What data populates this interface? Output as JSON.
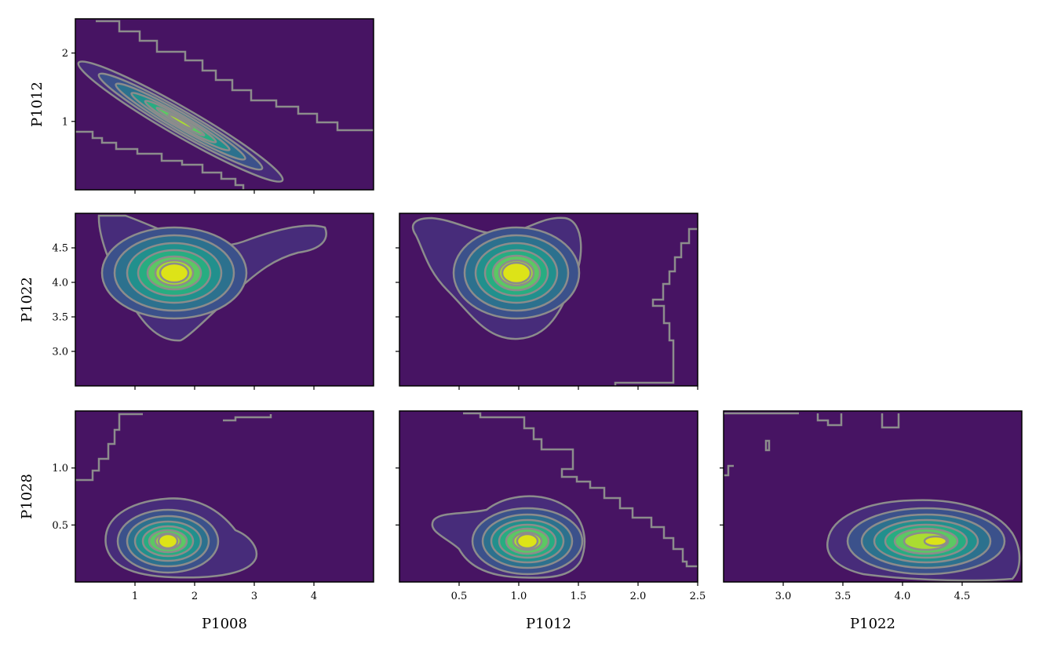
{
  "chart_data": {
    "type": "contour",
    "layout": "corner",
    "colormap": [
      "#440154",
      "#46337e",
      "#365c8d",
      "#277f8e",
      "#1fa187",
      "#4ac16d",
      "#9fda3a",
      "#d0e11c",
      "#fde725"
    ],
    "contour_line_color": "#8c8c8c",
    "background_fill": "#471463",
    "variables": [
      "P1008",
      "P1012",
      "P1022",
      "P1028"
    ],
    "panels": [
      {
        "id": "p1012-vs-p1008",
        "xvar": "P1008",
        "yvar": "P1012",
        "xlim": [
          0.0,
          5.0
        ],
        "ylim": [
          0.0,
          2.5
        ],
        "xticks": [],
        "yticks": [
          1,
          2
        ],
        "ytick_labels": [
          "1",
          "2"
        ],
        "ylabel": "P1012",
        "xlabel": "",
        "peak": {
          "x": 1.9,
          "y": 1.05
        },
        "ridge_slope": -0.35,
        "density_levels": [
          0.05,
          0.15,
          0.3,
          0.45,
          0.6,
          0.75,
          0.9
        ]
      },
      {
        "id": "p1022-vs-p1008",
        "xvar": "P1008",
        "yvar": "P1022",
        "xlim": [
          0.0,
          5.0
        ],
        "ylim": [
          2.5,
          5.0
        ],
        "yticks": [
          3.0,
          3.5,
          4.0,
          4.5
        ],
        "ytick_labels": [
          "3.0",
          "3.5",
          "4.0",
          "4.5"
        ],
        "ylabel": "P1022",
        "xlabel": "",
        "peak": {
          "x": 1.65,
          "y": 4.15
        },
        "density_levels": [
          0.05,
          0.15,
          0.3,
          0.45,
          0.6,
          0.75,
          0.9
        ]
      },
      {
        "id": "p1022-vs-p1012",
        "xvar": "P1012",
        "yvar": "P1022",
        "xlim": [
          0.0,
          2.5
        ],
        "ylim": [
          2.5,
          5.0
        ],
        "yticks": [
          3.0,
          3.5,
          4.0,
          4.5
        ],
        "ylabel": "",
        "xlabel": "",
        "peak": {
          "x": 1.0,
          "y": 4.15
        },
        "density_levels": [
          0.05,
          0.15,
          0.3,
          0.45,
          0.6,
          0.75,
          0.9
        ]
      },
      {
        "id": "p1028-vs-p1008",
        "xvar": "P1008",
        "yvar": "P1028",
        "xlim": [
          0.0,
          5.0
        ],
        "ylim": [
          0.0,
          1.5
        ],
        "xticks": [
          1,
          2,
          3,
          4
        ],
        "xtick_labels": [
          "1",
          "2",
          "3",
          "4"
        ],
        "yticks": [
          0.5,
          1.0
        ],
        "ytick_labels": [
          "0.5",
          "1.0"
        ],
        "ylabel": "P1028",
        "xlabel": "P1008",
        "peak": {
          "x": 1.6,
          "y": 0.33
        },
        "density_levels": [
          0.05,
          0.15,
          0.3,
          0.45,
          0.6,
          0.75,
          0.9
        ]
      },
      {
        "id": "p1028-vs-p1012",
        "xvar": "P1012",
        "yvar": "P1028",
        "xlim": [
          0.0,
          2.5
        ],
        "ylim": [
          0.0,
          1.5
        ],
        "xticks": [
          0.5,
          1.0,
          1.5,
          2.0,
          2.5
        ],
        "xtick_labels": [
          "0.5",
          "1.0",
          "1.5",
          "2.0",
          "2.5"
        ],
        "yticks": [
          0.5,
          1.0
        ],
        "ylabel": "",
        "xlabel": "P1012",
        "peak": {
          "x": 1.1,
          "y": 0.33
        },
        "density_levels": [
          0.05,
          0.15,
          0.3,
          0.45,
          0.6,
          0.75,
          0.9
        ]
      },
      {
        "id": "p1028-vs-p1022",
        "xvar": "P1022",
        "yvar": "P1028",
        "xlim": [
          2.5,
          5.0
        ],
        "ylim": [
          0.0,
          1.5
        ],
        "xticks": [
          3.0,
          3.5,
          4.0,
          4.5
        ],
        "xtick_labels": [
          "3.0",
          "3.5",
          "4.0",
          "4.5"
        ],
        "yticks": [
          0.5,
          1.0
        ],
        "ylabel": "",
        "xlabel": "P1022",
        "peak": {
          "x": 4.25,
          "y": 0.33
        },
        "density_levels": [
          0.05,
          0.15,
          0.3,
          0.45,
          0.6,
          0.75,
          0.9
        ]
      }
    ]
  }
}
